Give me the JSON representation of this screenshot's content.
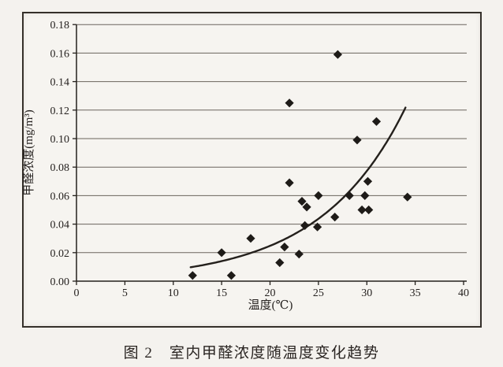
{
  "figure": {
    "caption": "图 2　室内甲醛浓度随温度变化趋势"
  },
  "colors": {
    "ink": "#24201c",
    "grid": "#6b655d",
    "frame": "#35302a",
    "paper": "#f6f4f0",
    "marker": "#1e1b18"
  },
  "chart_data": {
    "type": "scatter",
    "title": "",
    "xlabel": "温度(℃)",
    "ylabel": "甲醛浓度(mg/m³)",
    "xlim": [
      0,
      40
    ],
    "ylim": [
      0,
      0.18
    ],
    "xticks": [
      0,
      5,
      10,
      15,
      20,
      25,
      30,
      35,
      40
    ],
    "yticks": [
      "0.00",
      "0.02",
      "0.04",
      "0.06",
      "0.08",
      "0.10",
      "0.12",
      "0.14",
      "0.16",
      "0.18"
    ],
    "grid": "horizontal",
    "legend": "none",
    "marker": "diamond",
    "points": [
      [
        12,
        0.004
      ],
      [
        15,
        0.02
      ],
      [
        16,
        0.004
      ],
      [
        18,
        0.03
      ],
      [
        21,
        0.013
      ],
      [
        21.5,
        0.024
      ],
      [
        22,
        0.069
      ],
      [
        22,
        0.125
      ],
      [
        23,
        0.019
      ],
      [
        23.3,
        0.056
      ],
      [
        23.8,
        0.052
      ],
      [
        23.6,
        0.039
      ],
      [
        24.9,
        0.038
      ],
      [
        25,
        0.06
      ],
      [
        26.7,
        0.045
      ],
      [
        27,
        0.159
      ],
      [
        28.2,
        0.06
      ],
      [
        29,
        0.099
      ],
      [
        29.5,
        0.05
      ],
      [
        30.2,
        0.05
      ],
      [
        29.8,
        0.06
      ],
      [
        30.1,
        0.07
      ],
      [
        31,
        0.112
      ],
      [
        34.2,
        0.059
      ]
    ],
    "trend": {
      "type": "exponential",
      "a": 0.00255,
      "b": 0.1137,
      "t_start": 11.8,
      "t_end": 34.0
    }
  }
}
